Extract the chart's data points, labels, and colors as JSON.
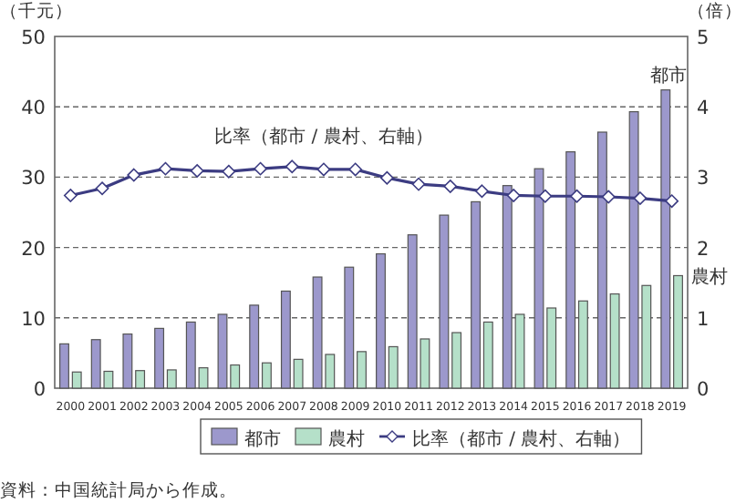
{
  "chart_data": {
    "type": "bar",
    "ylabel": "（千元）",
    "y2label": "（倍）",
    "categories": [
      "2000",
      "2001",
      "2002",
      "2003",
      "2004",
      "2005",
      "2006",
      "2007",
      "2008",
      "2009",
      "2010",
      "2011",
      "2012",
      "2013",
      "2014",
      "2015",
      "2016",
      "2017",
      "2018",
      "2019"
    ],
    "series": [
      {
        "name": "都市",
        "color": "#9c98cc",
        "values": [
          6.3,
          6.9,
          7.7,
          8.5,
          9.4,
          10.5,
          11.8,
          13.8,
          15.8,
          17.2,
          19.1,
          21.8,
          24.6,
          26.5,
          28.8,
          31.2,
          33.6,
          36.4,
          39.3,
          42.4
        ]
      },
      {
        "name": "農村",
        "color": "#b5e0c9",
        "values": [
          2.3,
          2.4,
          2.5,
          2.6,
          2.9,
          3.3,
          3.6,
          4.1,
          4.8,
          5.2,
          5.9,
          7.0,
          7.9,
          9.4,
          10.5,
          11.4,
          12.4,
          13.4,
          14.6,
          16.0
        ]
      },
      {
        "name": "比率（都市 / 農村、右軸）",
        "type": "line",
        "axis": "y2",
        "color": "#3c3c82",
        "marker": "diamond",
        "values": [
          2.74,
          2.84,
          3.03,
          3.12,
          3.09,
          3.08,
          3.12,
          3.15,
          3.11,
          3.11,
          2.99,
          2.9,
          2.87,
          2.8,
          2.74,
          2.73,
          2.73,
          2.72,
          2.7,
          2.66
        ]
      }
    ],
    "ylim": [
      0,
      50
    ],
    "yticks": [
      0,
      10,
      20,
      30,
      40,
      50
    ],
    "y2lim": [
      0,
      5
    ],
    "y2ticks": [
      0,
      1,
      2,
      3,
      4,
      5
    ],
    "grid": "y",
    "legend": "bottom",
    "annotations": [
      {
        "text": "都市",
        "x": "2019",
        "y": 42.4
      },
      {
        "text": "農村",
        "x": "2019",
        "y": 16.0
      },
      "比率（都市 / 農村、右軸）",
      "資料：中国統計局から作成。"
    ]
  }
}
